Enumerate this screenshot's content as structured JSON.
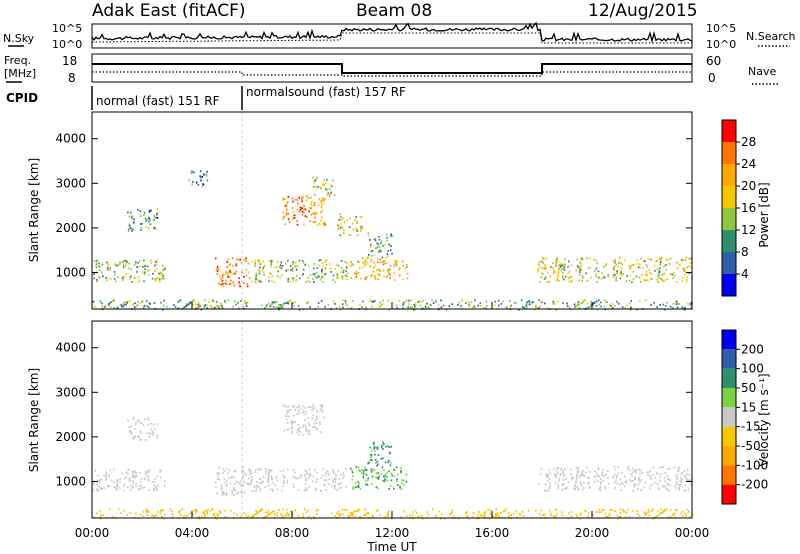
{
  "header": {
    "title": "Adak East (fitACF)",
    "beam": "Beam 08",
    "date": "12/Aug/2015"
  },
  "top_panels": {
    "nsky_label": "N.Sky",
    "nsearch_label": "N.Search",
    "freq_label": "Freq.",
    "freq_unit": "[MHz]",
    "nave_label": "Nave",
    "cpid_label": "CPID",
    "noise_left_ticks": [
      "10^5",
      "10^0"
    ],
    "noise_right_ticks": [
      "10^5",
      "10^0"
    ],
    "freq_ticks": [
      "18",
      "8"
    ],
    "nave_ticks": [
      "60",
      "0"
    ],
    "cpid_segments": [
      {
        "label": "normal (fast) 151 RF",
        "start_hour": 0,
        "end_hour": 6
      },
      {
        "label": "normalsound (fast) 157 RF",
        "start_hour": 6,
        "end_hour": 24
      }
    ]
  },
  "chart_data": [
    {
      "type": "heatmap",
      "name": "Power",
      "xlabel": "",
      "ylabel": "Slant Range [km]",
      "colorbar_label": "Power [dB]",
      "colorbar_ticks": [
        "28",
        "24",
        "20",
        "16",
        "12",
        "8",
        "4"
      ],
      "colorbar_colors": [
        "#ff0000",
        "#ff7700",
        "#ffaa00",
        "#f5c800",
        "#8fc63f",
        "#2f8f6f",
        "#2f5fa8",
        "#0000ee"
      ],
      "x_range": [
        "00:00",
        "00:00"
      ],
      "y_range": [
        180,
        4600
      ],
      "y_ticks": [
        1000,
        2000,
        3000,
        4000
      ],
      "echo_regions": [
        {
          "t0": 0.0,
          "t1": 2.9,
          "r0": 800,
          "r1": 1300,
          "level": 12
        },
        {
          "t0": 1.4,
          "t1": 2.6,
          "r0": 1950,
          "r1": 2450,
          "level": 8
        },
        {
          "t0": 3.8,
          "t1": 4.6,
          "r0": 2950,
          "r1": 3300,
          "level": 6
        },
        {
          "t0": 4.9,
          "t1": 6.2,
          "r0": 700,
          "r1": 1350,
          "level": 24
        },
        {
          "t0": 6.2,
          "t1": 10.2,
          "r0": 800,
          "r1": 1300,
          "level": 12
        },
        {
          "t0": 7.6,
          "t1": 9.3,
          "r0": 2050,
          "r1": 2750,
          "level": 22
        },
        {
          "t0": 8.8,
          "t1": 9.7,
          "r0": 2700,
          "r1": 3150,
          "level": 14
        },
        {
          "t0": 9.8,
          "t1": 10.8,
          "r0": 1850,
          "r1": 2350,
          "level": 14
        },
        {
          "t0": 10.3,
          "t1": 12.6,
          "r0": 850,
          "r1": 1350,
          "level": 18
        },
        {
          "t0": 11.0,
          "t1": 12.0,
          "r0": 1350,
          "r1": 1900,
          "level": 10
        },
        {
          "t0": 17.8,
          "t1": 24.0,
          "r0": 800,
          "r1": 1350,
          "level": 14
        },
        {
          "t0": 0.0,
          "t1": 24.0,
          "r0": 180,
          "r1": 400,
          "level": 10
        }
      ]
    },
    {
      "type": "heatmap",
      "name": "Velocity",
      "xlabel": "Time UT",
      "ylabel": "Slant Range [km]",
      "colorbar_label": "Velocity [m s⁻¹]",
      "colorbar_ticks": [
        "200",
        "100",
        "50",
        "15",
        "-15",
        "-50",
        "-100",
        "-200"
      ],
      "colorbar_colors": [
        "#0000ee",
        "#2f5fa8",
        "#2f8f6f",
        "#7bd13f",
        "#c8c8c8",
        "#f5c800",
        "#ffaa00",
        "#ff7700",
        "#ff0000"
      ],
      "x_ticks": [
        "00:00",
        "04:00",
        "08:00",
        "12:00",
        "16:00",
        "20:00",
        "00:00"
      ],
      "y_range": [
        180,
        4600
      ],
      "y_ticks": [
        1000,
        2000,
        3000,
        4000
      ],
      "echo_regions": [
        {
          "t0": 0.0,
          "t1": 2.9,
          "r0": 800,
          "r1": 1300,
          "vel": 0
        },
        {
          "t0": 1.4,
          "t1": 2.6,
          "r0": 1950,
          "r1": 2450,
          "vel": 0
        },
        {
          "t0": 4.9,
          "t1": 6.2,
          "r0": 700,
          "r1": 1350,
          "vel": 0
        },
        {
          "t0": 6.2,
          "t1": 10.2,
          "r0": 800,
          "r1": 1300,
          "vel": 0
        },
        {
          "t0": 7.6,
          "t1": 9.3,
          "r0": 2050,
          "r1": 2750,
          "vel": 0
        },
        {
          "t0": 10.3,
          "t1": 12.6,
          "r0": 850,
          "r1": 1350,
          "vel": 30
        },
        {
          "t0": 11.0,
          "t1": 12.0,
          "r0": 1350,
          "r1": 1900,
          "vel": 40
        },
        {
          "t0": 17.8,
          "t1": 24.0,
          "r0": 800,
          "r1": 1350,
          "vel": 0
        },
        {
          "t0": 0.0,
          "t1": 24.0,
          "r0": 180,
          "r1": 400,
          "vel": -40
        }
      ]
    }
  ]
}
